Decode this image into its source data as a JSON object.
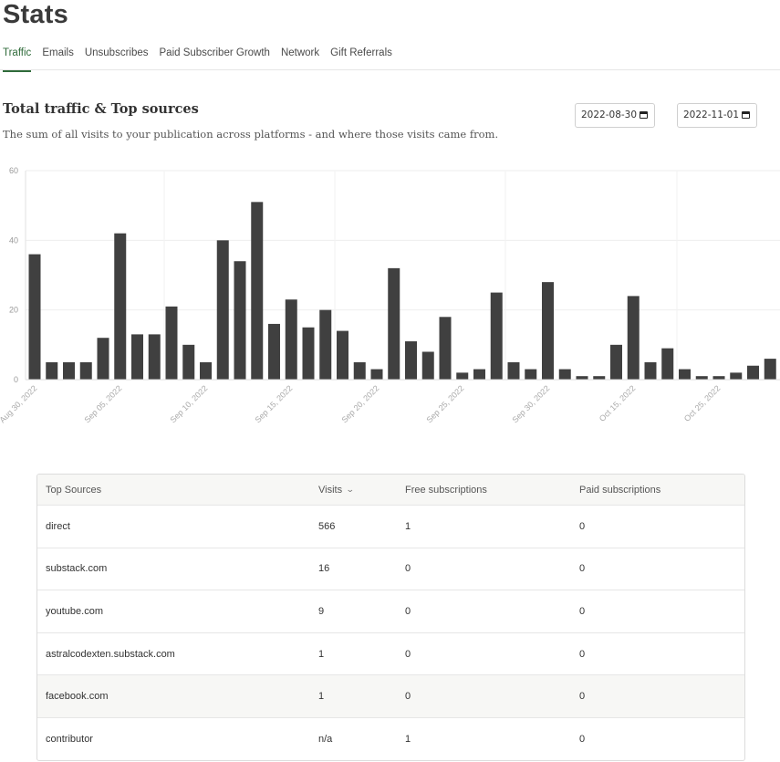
{
  "page": {
    "title": "Stats"
  },
  "tabs": [
    {
      "label": "Traffic",
      "active": true
    },
    {
      "label": "Emails"
    },
    {
      "label": "Unsubscribes"
    },
    {
      "label": "Paid Subscriber Growth"
    },
    {
      "label": "Network"
    },
    {
      "label": "Gift Referrals"
    }
  ],
  "section": {
    "title": "Total traffic & Top sources",
    "description": "The sum of all visits to your publication across platforms - and where those visits came from."
  },
  "date_range": {
    "start": "2022-08-30",
    "end": "2022-11-01"
  },
  "chart_data": {
    "type": "bar",
    "bar_color": "#404040",
    "grid": true,
    "ylim": [
      0,
      60
    ],
    "yticks": [
      0,
      20,
      40,
      60
    ],
    "x_tick_labels": [
      "Aug 30, 2022",
      "Sep 05, 2022",
      "Sep 10, 2022",
      "Sep 15, 2022",
      "Sep 20, 2022",
      "Sep 25, 2022",
      "Sep 30, 2022",
      "Oct 15, 2022",
      "Oct 25, 2022"
    ],
    "values": [
      36,
      5,
      5,
      5,
      12,
      42,
      13,
      13,
      21,
      10,
      5,
      40,
      34,
      51,
      16,
      23,
      15,
      20,
      14,
      5,
      3,
      32,
      11,
      8,
      18,
      2,
      3,
      25,
      5,
      3,
      28,
      3,
      1,
      1,
      10,
      24,
      5,
      9,
      3,
      1,
      1,
      2,
      4,
      6
    ]
  },
  "top_sources": {
    "headers": {
      "source": "Top Sources",
      "visits": "Visits",
      "free": "Free subscriptions",
      "paid": "Paid subscriptions"
    },
    "sort_icon": "chevron-down-icon",
    "rows": [
      {
        "source": "direct",
        "visits": "566",
        "free": "1",
        "paid": "0"
      },
      {
        "source": "substack.com",
        "visits": "16",
        "free": "0",
        "paid": "0"
      },
      {
        "source": "youtube.com",
        "visits": "9",
        "free": "0",
        "paid": "0"
      },
      {
        "source": "astralcodexten.substack.com",
        "visits": "1",
        "free": "0",
        "paid": "0"
      },
      {
        "source": "facebook.com",
        "visits": "1",
        "free": "0",
        "paid": "0",
        "highlighted": true
      },
      {
        "source": "contributor",
        "visits": "n/a",
        "free": "1",
        "paid": "0"
      }
    ]
  }
}
